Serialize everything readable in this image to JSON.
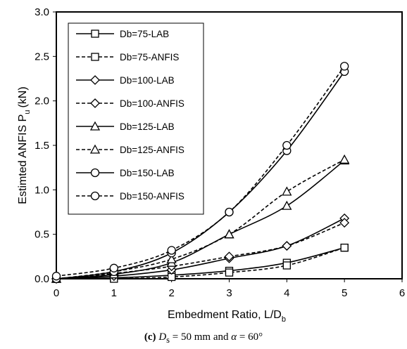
{
  "chart_data": {
    "type": "line",
    "ylabel": "Estimted ANFIS P",
    "ylabel_sub": "u",
    "ylabel_unit": "(kN)",
    "xlabel": "Embedment Ratio, L/D",
    "xlabel_sub": "b",
    "xlim": [
      0,
      6
    ],
    "ylim": [
      0,
      3.0
    ],
    "x_ticks": [
      "0",
      "1",
      "2",
      "3",
      "4",
      "5",
      "6"
    ],
    "y_ticks": [
      "0.0",
      "0.5",
      "1.0",
      "1.5",
      "2.0",
      "2.5",
      "3.0"
    ],
    "grid": false,
    "legend_position": "top-left",
    "x": [
      0,
      1,
      2,
      3,
      4,
      5
    ],
    "series": [
      {
        "name": "Db=75-LAB",
        "marker": "square",
        "dash": "solid",
        "values": [
          0.0,
          0.01,
          0.04,
          0.09,
          0.18,
          0.35
        ]
      },
      {
        "name": "Db=75-ANFIS",
        "marker": "square",
        "dash": "dashed",
        "values": [
          0.0,
          0.0,
          0.02,
          0.07,
          0.15,
          0.35
        ]
      },
      {
        "name": "Db=100-LAB",
        "marker": "diamond",
        "dash": "solid",
        "values": [
          0.0,
          0.03,
          0.1,
          0.23,
          0.37,
          0.68
        ]
      },
      {
        "name": "Db=100-ANFIS",
        "marker": "diamond",
        "dash": "dashed",
        "values": [
          0.0,
          0.06,
          0.14,
          0.25,
          0.37,
          0.63
        ]
      },
      {
        "name": "Db=125-LAB",
        "marker": "triangle",
        "dash": "solid",
        "values": [
          0.0,
          0.05,
          0.18,
          0.5,
          0.82,
          1.33
        ]
      },
      {
        "name": "Db=125-ANFIS",
        "marker": "triangle",
        "dash": "dashed",
        "values": [
          0.0,
          0.08,
          0.22,
          0.5,
          0.98,
          1.34
        ]
      },
      {
        "name": "Db=150-LAB",
        "marker": "circle",
        "dash": "solid",
        "values": [
          0.0,
          0.08,
          0.29,
          0.75,
          1.44,
          2.33
        ]
      },
      {
        "name": "Db=150-ANFIS",
        "marker": "circle",
        "dash": "dashed",
        "values": [
          0.03,
          0.12,
          0.32,
          0.75,
          1.5,
          2.39
        ]
      }
    ]
  },
  "caption": {
    "label": "(c)",
    "ds_symbol": "D",
    "ds_sub": "s",
    "ds_text": " = 50 mm and ",
    "alpha_symbol": "α",
    "alpha_text": " = 60°"
  }
}
